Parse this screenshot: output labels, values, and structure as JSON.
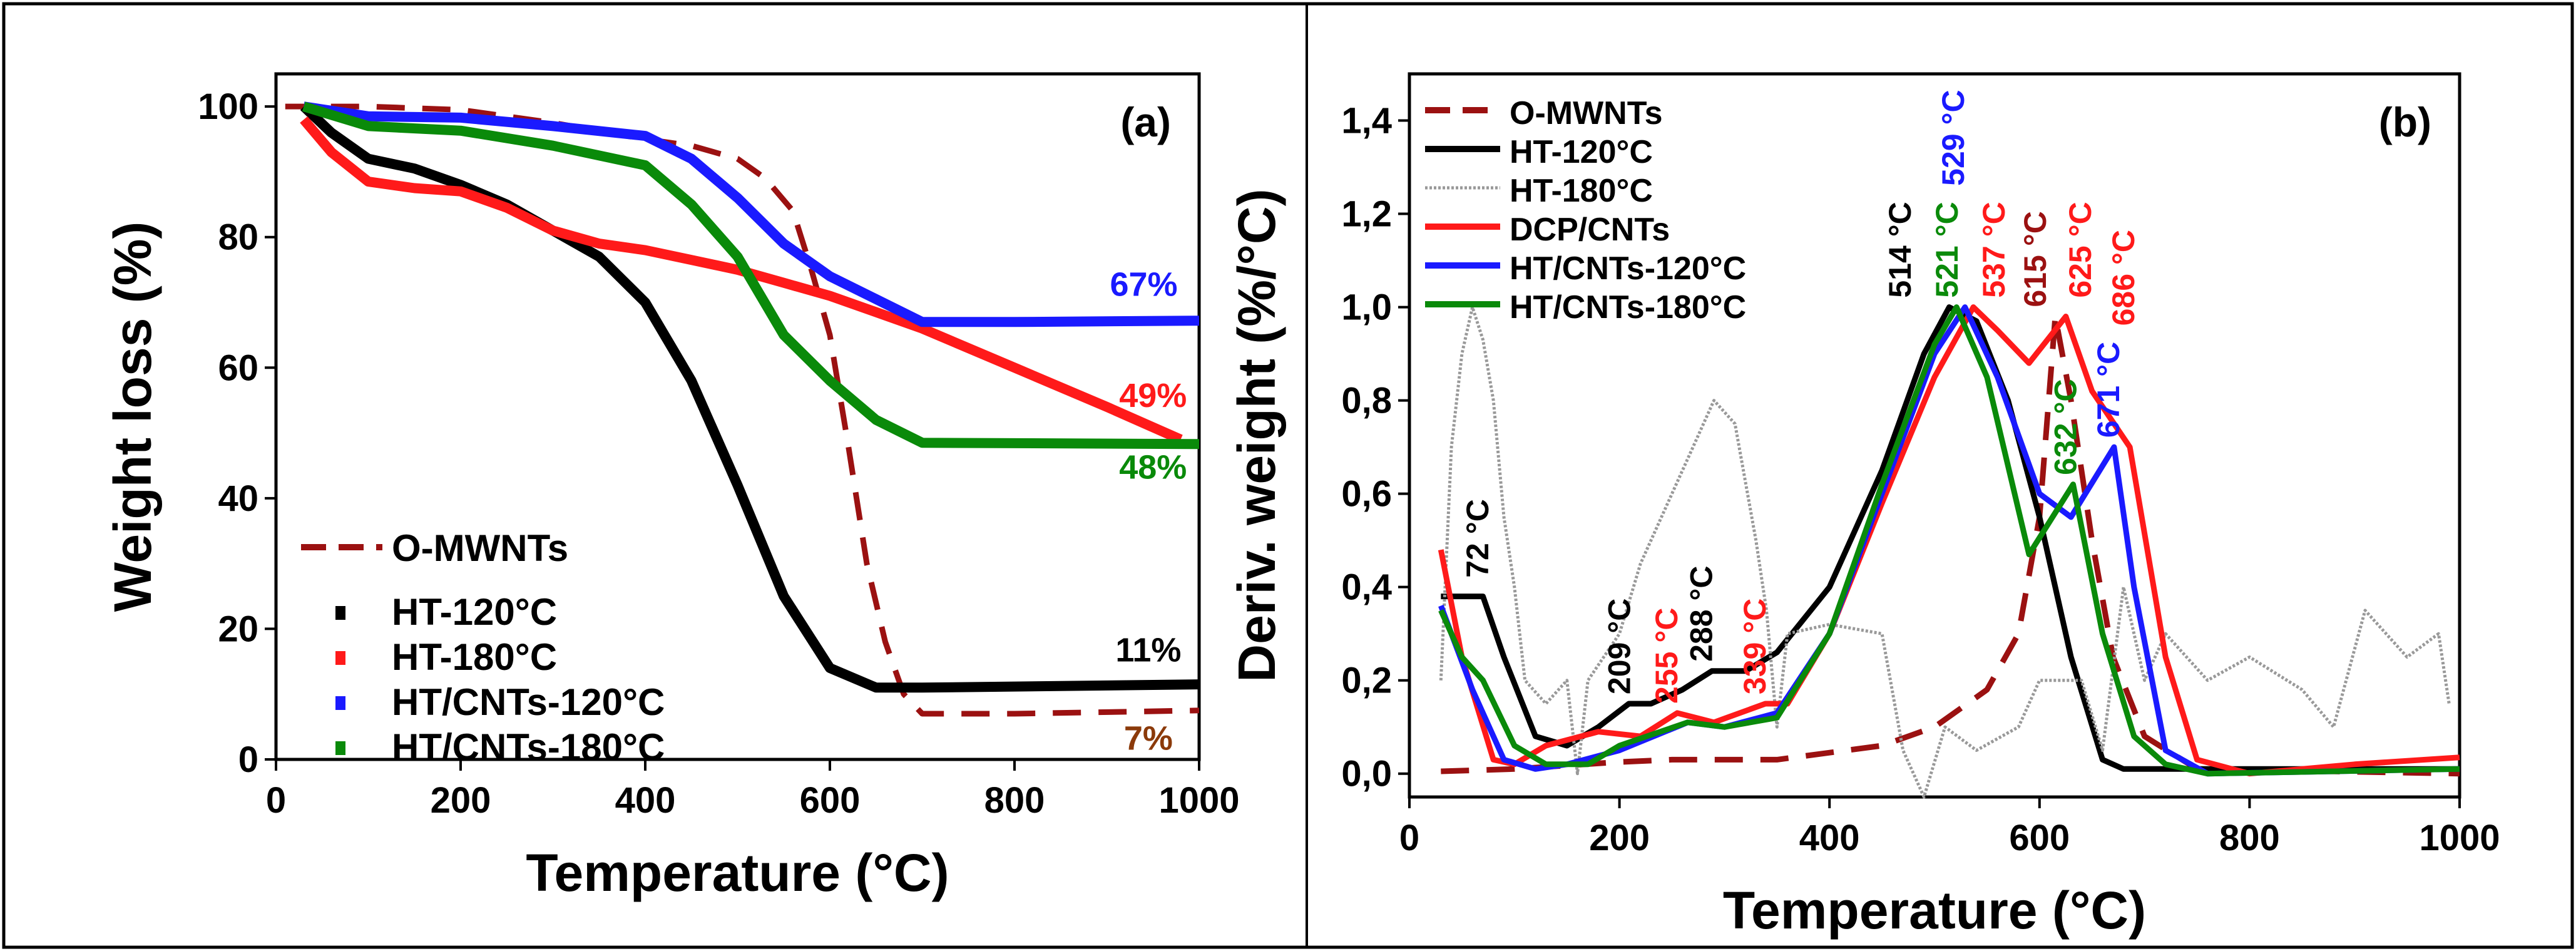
{
  "chart_data": [
    {
      "type": "line",
      "panel_label": "(a)",
      "xlabel": "Temperature (°C)",
      "ylabel": "Weight loss (%)",
      "xlim": [
        0,
        1000
      ],
      "ylim": [
        0,
        105
      ],
      "xticks": [
        "0",
        "200",
        "400",
        "600",
        "800",
        "1000"
      ],
      "xtick_values": [
        0,
        200,
        400,
        600,
        800,
        1000
      ],
      "yticks": [
        "0",
        "20",
        "40",
        "60",
        "80",
        "100"
      ],
      "ytick_values": [
        0,
        20,
        40,
        60,
        80,
        100
      ],
      "legend_position": "bottom-left",
      "series": [
        {
          "name": "O-MWNTs",
          "color": "#9b1111",
          "dashed": true,
          "x": [
            10,
            100,
            200,
            300,
            400,
            450,
            500,
            530,
            560,
            580,
            600,
            620,
            640,
            660,
            680,
            700,
            800,
            1000
          ],
          "y": [
            100,
            100,
            99.5,
            97.5,
            95,
            94,
            92,
            89,
            84,
            75,
            65,
            48,
            30,
            18,
            10,
            7,
            7,
            7.5
          ]
        },
        {
          "name": "HT-120°C",
          "color": "#000000",
          "x": [
            30,
            60,
            100,
            150,
            200,
            250,
            300,
            350,
            400,
            450,
            500,
            550,
            600,
            650,
            700,
            1000
          ],
          "y": [
            100,
            96,
            92,
            90.5,
            88,
            85,
            81,
            77,
            70,
            58,
            42,
            25,
            14,
            11,
            11,
            11.5
          ]
        },
        {
          "name": "HT-180°C",
          "color": "#ff1a1a",
          "x": [
            30,
            60,
            100,
            150,
            200,
            250,
            300,
            350,
            400,
            450,
            500,
            550,
            600,
            650,
            700,
            800,
            900,
            980
          ],
          "y": [
            98,
            93,
            88.5,
            87.5,
            87,
            84.5,
            81,
            79,
            78,
            76.5,
            75,
            73,
            71,
            68.5,
            66,
            60,
            54,
            49
          ]
        },
        {
          "name": "HT/CNTs-120°C",
          "color": "#1a1aff",
          "x": [
            30,
            100,
            200,
            300,
            400,
            450,
            500,
            550,
            600,
            650,
            700,
            800,
            1000
          ],
          "y": [
            100,
            98.5,
            98.3,
            97,
            95.5,
            92,
            86,
            79,
            74,
            70.5,
            67,
            67,
            67.2
          ]
        },
        {
          "name": "HT/CNTs-180°C",
          "color": "#0a8a0a",
          "x": [
            30,
            100,
            200,
            300,
            400,
            450,
            500,
            550,
            600,
            650,
            700,
            1000
          ],
          "y": [
            100,
            97,
            96.3,
            94,
            91,
            85,
            77,
            65,
            58,
            52,
            48.5,
            48.3
          ]
        }
      ],
      "annotations": [
        {
          "text": "67%",
          "color": "#1a1aff",
          "x": 940,
          "y": 71
        },
        {
          "text": "49%",
          "color": "#ff1a1a",
          "x": 950,
          "y": 54
        },
        {
          "text": "48%",
          "color": "#0a8a0a",
          "x": 950,
          "y": 43
        },
        {
          "text": "11%",
          "color": "#000000",
          "x": 945,
          "y": 15
        },
        {
          "text": "7%",
          "color": "#8b3a0a",
          "x": 945,
          "y": 1.5
        }
      ]
    },
    {
      "type": "line",
      "panel_label": "(b)",
      "xlabel": "Temperature (°C)",
      "ylabel": "Deriv. weight (%/°C)",
      "xlim": [
        0,
        1000
      ],
      "ylim": [
        -0.05,
        1.5
      ],
      "xticks": [
        "0",
        "200",
        "400",
        "600",
        "800",
        "1000"
      ],
      "xtick_values": [
        0,
        200,
        400,
        600,
        800,
        1000
      ],
      "yticks": [
        "0,0",
        "0,2",
        "0,4",
        "0,6",
        "0,8",
        "1,0",
        "1,2",
        "1,4"
      ],
      "ytick_values": [
        0,
        0.2,
        0.4,
        0.6,
        0.8,
        1.0,
        1.2,
        1.4
      ],
      "legend_position": "top-left",
      "series": [
        {
          "name": "O-MWNTs",
          "color": "#9b1111",
          "dashed": true,
          "x": [
            30,
            100,
            200,
            250,
            350,
            450,
            500,
            550,
            580,
            600,
            615,
            630,
            650,
            670,
            700,
            750,
            1000
          ],
          "y": [
            0.005,
            0.01,
            0.025,
            0.03,
            0.03,
            0.06,
            0.1,
            0.18,
            0.3,
            0.55,
            0.98,
            0.8,
            0.5,
            0.25,
            0.08,
            0.01,
            0
          ]
        },
        {
          "name": "HT-120°C",
          "color": "#000000",
          "x": [
            30,
            50,
            70,
            90,
            120,
            150,
            180,
            209,
            230,
            260,
            288,
            320,
            350,
            400,
            450,
            490,
            514,
            540,
            570,
            600,
            630,
            660,
            680,
            1000
          ],
          "y": [
            0.38,
            0.38,
            0.38,
            0.25,
            0.08,
            0.06,
            0.1,
            0.15,
            0.15,
            0.18,
            0.22,
            0.22,
            0.26,
            0.4,
            0.65,
            0.9,
            1.0,
            0.97,
            0.8,
            0.55,
            0.25,
            0.03,
            0.01,
            0.01
          ]
        },
        {
          "name": "HT-180°C",
          "color": "#999999",
          "thin": true,
          "x": [
            30,
            40,
            50,
            60,
            70,
            80,
            90,
            100,
            110,
            130,
            150,
            160,
            170,
            200,
            220,
            250,
            270,
            290,
            310,
            330,
            340,
            350,
            360,
            400,
            450,
            470,
            490,
            510,
            540,
            580,
            600,
            640,
            660,
            680,
            700,
            720,
            760,
            800,
            850,
            880,
            910,
            950,
            980,
            990
          ],
          "y": [
            0.2,
            0.7,
            0.9,
            1.0,
            0.93,
            0.8,
            0.55,
            0.4,
            0.2,
            0.15,
            0.2,
            0.0,
            0.2,
            0.3,
            0.45,
            0.6,
            0.7,
            0.8,
            0.75,
            0.5,
            0.35,
            0.1,
            0.3,
            0.32,
            0.3,
            0.05,
            -0.05,
            0.1,
            0.05,
            0.1,
            0.2,
            0.2,
            0.05,
            0.4,
            0.2,
            0.3,
            0.2,
            0.25,
            0.18,
            0.1,
            0.35,
            0.25,
            0.3,
            0.15
          ]
        },
        {
          "name": "DCP/CNTs",
          "color": "#ff1a1a",
          "x": [
            30,
            50,
            80,
            100,
            130,
            180,
            220,
            255,
            290,
            339,
            360,
            400,
            450,
            500,
            537,
            560,
            590,
            625,
            650,
            686,
            720,
            750,
            800,
            850,
            900,
            1000
          ],
          "y": [
            0.48,
            0.25,
            0.03,
            0.02,
            0.06,
            0.09,
            0.08,
            0.13,
            0.11,
            0.15,
            0.15,
            0.3,
            0.58,
            0.85,
            1.0,
            0.95,
            0.88,
            0.98,
            0.82,
            0.7,
            0.25,
            0.03,
            0.0,
            0.01,
            0.02,
            0.035
          ]
        },
        {
          "name": "HT/CNTs-120°C",
          "color": "#1a1aff",
          "x": [
            30,
            60,
            90,
            120,
            150,
            200,
            265,
            300,
            350,
            400,
            450,
            500,
            529,
            560,
            600,
            630,
            671,
            690,
            720,
            760,
            1000
          ],
          "y": [
            0.36,
            0.18,
            0.03,
            0.01,
            0.02,
            0.05,
            0.11,
            0.1,
            0.13,
            0.3,
            0.6,
            0.9,
            1.0,
            0.85,
            0.6,
            0.55,
            0.7,
            0.4,
            0.05,
            0,
            0.01
          ]
        },
        {
          "name": "HT/CNTs-180°C",
          "color": "#0a8a0a",
          "x": [
            30,
            50,
            70,
            100,
            130,
            170,
            200,
            265,
            300,
            350,
            400,
            450,
            500,
            521,
            550,
            590,
            632,
            660,
            690,
            720,
            760,
            1000
          ],
          "y": [
            0.35,
            0.25,
            0.2,
            0.06,
            0.02,
            0.02,
            0.06,
            0.11,
            0.1,
            0.12,
            0.3,
            0.62,
            0.92,
            1.0,
            0.85,
            0.47,
            0.62,
            0.3,
            0.08,
            0.02,
            0,
            0.01
          ]
        }
      ],
      "annotations": [
        {
          "text": "72 °C",
          "color": "#000000",
          "x": 75,
          "y": 0.42
        },
        {
          "text": "209 °C",
          "color": "#000000",
          "x": 210,
          "y": 0.17
        },
        {
          "text": "255 °C",
          "color": "#ff1a1a",
          "x": 255,
          "y": 0.15
        },
        {
          "text": "288 °C",
          "color": "#000000",
          "x": 288,
          "y": 0.24
        },
        {
          "text": "339 °C",
          "color": "#ff1a1a",
          "x": 339,
          "y": 0.17
        },
        {
          "text": "514 °C",
          "color": "#000000",
          "x": 500,
          "y": 1.02
        },
        {
          "text": "521 °C",
          "color": "#0a8a0a",
          "x": 522,
          "y": 1.02
        },
        {
          "text": "537 °C",
          "color": "#ff1a1a",
          "x": 544,
          "y": 1.02
        },
        {
          "text": "529 °C",
          "color": "#1a1aff",
          "x": 528,
          "y": 1.26
        },
        {
          "text": "615 °C",
          "color": "#9b1111",
          "x": 612,
          "y": 1.0
        },
        {
          "text": "625 °C",
          "color": "#ff1a1a",
          "x": 634,
          "y": 1.02
        },
        {
          "text": "686 °C",
          "color": "#ff1a1a",
          "x": 690,
          "y": 0.96
        },
        {
          "text": "671 °C",
          "color": "#1a1aff",
          "x": 667,
          "y": 0.72
        },
        {
          "text": "632 °C",
          "color": "#0a8a0a",
          "x": 644,
          "y": 0.64
        }
      ]
    }
  ]
}
